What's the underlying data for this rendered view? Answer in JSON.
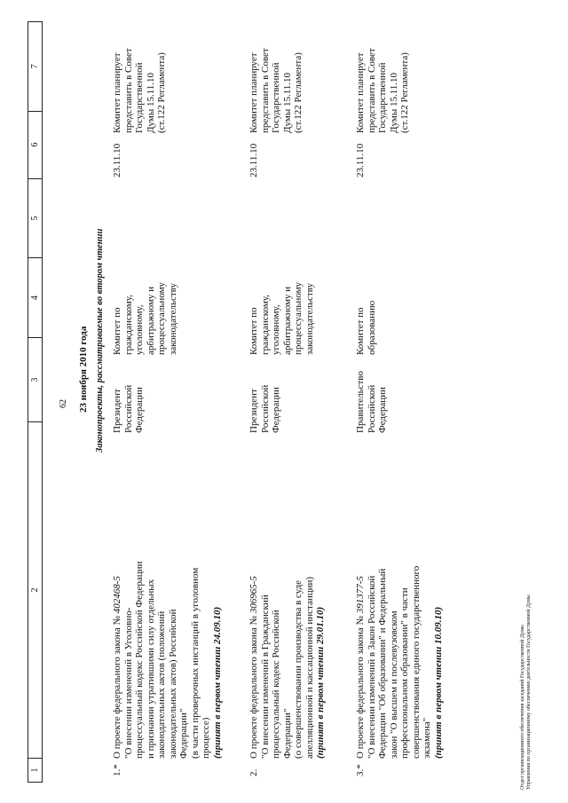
{
  "page_number": "62",
  "columns": [
    "1",
    "2",
    "3",
    "4",
    "5",
    "6",
    "7"
  ],
  "date_heading": "23 ноября 2010 года",
  "section_heading": "Законопроекты, рассматриваемые во втором чтении",
  "rows": [
    {
      "num": "1.*",
      "intro": "О проекте федерального закона № ",
      "bill": "402468-5",
      "body": "\"О внесении изменений в Уголовно-\nпроцессуальный кодекс Российской Федерации\nи признании утратившими силу отдельных\nзаконодательных актов (положений\nзаконодательных актов) Российской\nФедерации\"\n(в части проверочных инстанций в уголовном\nпроцессе)",
      "note": "(принят в первом чтении 24.09.10)",
      "initiator": "Президент\nРоссийской\nФедерации",
      "committee": "Комитет по\nгражданскому,\nуголовному,\nарбитражному и\nпроцессуальному\nзаконодательству",
      "date": "23.11.10",
      "remark": "Комитет планирует\nпредставить в Совет\nГосударственной\nДумы 15.11.10\n(ст.122 Регламента)"
    },
    {
      "num": "2.",
      "intro": "О проекте федерального закона № ",
      "bill": "306965-5",
      "body": "\"О внесении изменений в Гражданский\nпроцессуальный кодекс Российской\nФедерации\"\n(о совершенствовании производства в суде\nапелляционной и кассационной инстанции)",
      "note": "(принят в первом чтении 29.01.10)",
      "initiator": "Президент\nРоссийской\nФедерации",
      "committee": "Комитет по\nгражданскому,\nуголовному,\nарбитражному и\nпроцессуальному\nзаконодательству",
      "date": "23.11.10",
      "remark": "Комитет планирует\nпредставить в Совет\nГосударственной\nДумы 15.11.10\n(ст.122 Регламента)"
    },
    {
      "num": "3.*",
      "intro": "О проекте федерального закона № ",
      "bill": "391377-5",
      "body": "\"О внесении изменений в Закон Российской\nФедерации \"Об образовании\" и Федеральный\nзакон \"О высшем и послевузовском\nпрофессиональном образовании\" в части\nсовершенствования единого государственного\nэкзамена\"",
      "note": "(принят в первом чтении 10.09.10)",
      "initiator": "Правительство\nРоссийской\nФедерации",
      "committee": "Комитет по\nобразованию",
      "date": "23.11.10",
      "remark": "Комитет планирует\nпредставить в Совет\nГосударственной\nДумы 15.11.10\n(ст.122 Регламента)"
    }
  ],
  "footer": {
    "line1": "Отдел организационного обеспечения заседаний Государственной Думы",
    "line2": "Управления по организационному обеспечению деятельности Государственной Думы"
  }
}
